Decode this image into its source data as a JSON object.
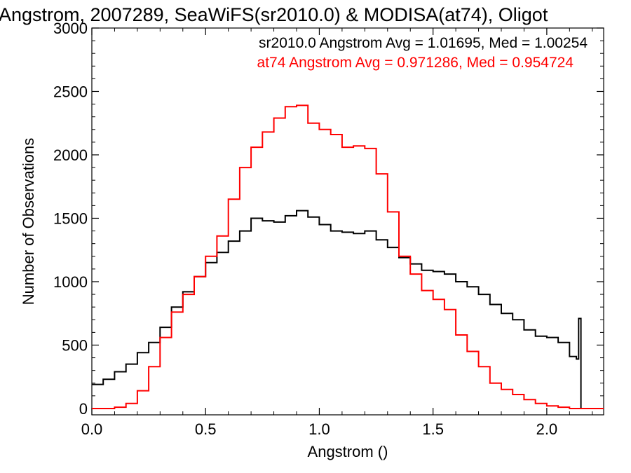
{
  "chart_data": {
    "type": "line",
    "step": true,
    "title": "Angstrom, 2007289, SeaWiFS(sr2010.0) & MODISA(at74), Oligot",
    "xlabel": "Angstrom ()",
    "ylabel": "Number of Observations",
    "xlim": [
      0.0,
      2.25
    ],
    "ylim": [
      -50,
      3000
    ],
    "x_ticks": [
      0.0,
      0.5,
      1.0,
      1.5,
      2.0
    ],
    "x_tick_labels": [
      "0.0",
      "0.5",
      "1.0",
      "1.5",
      "2.0"
    ],
    "y_ticks": [
      0,
      500,
      1000,
      1500,
      2000,
      2500,
      3000
    ],
    "y_tick_labels": [
      "0",
      "500",
      "1000",
      "1500",
      "2000",
      "2500",
      "3000"
    ],
    "grid": false,
    "annotations": [
      {
        "text": "sr2010.0 Angstrom Avg = 1.01695, Med = 1.00254",
        "color": "#000000"
      },
      {
        "text": "at74 Angstrom Avg = 0.971286, Med = 0.954724",
        "color": "#ff0000"
      }
    ],
    "series": [
      {
        "name": "sr2010.0",
        "color": "#000000",
        "x": [
          0.0,
          0.05,
          0.1,
          0.15,
          0.2,
          0.25,
          0.3,
          0.35,
          0.4,
          0.45,
          0.5,
          0.55,
          0.6,
          0.65,
          0.7,
          0.75,
          0.8,
          0.85,
          0.9,
          0.95,
          1.0,
          1.05,
          1.1,
          1.15,
          1.2,
          1.25,
          1.3,
          1.35,
          1.4,
          1.45,
          1.5,
          1.55,
          1.6,
          1.65,
          1.7,
          1.75,
          1.8,
          1.85,
          1.9,
          1.95,
          2.0,
          2.05,
          2.1,
          2.13,
          2.14,
          2.15,
          2.25
        ],
        "y": [
          190,
          230,
          290,
          350,
          440,
          520,
          640,
          800,
          920,
          1040,
          1150,
          1230,
          1320,
          1400,
          1500,
          1480,
          1470,
          1520,
          1560,
          1510,
          1450,
          1400,
          1390,
          1380,
          1400,
          1330,
          1270,
          1190,
          1140,
          1090,
          1080,
          1060,
          1000,
          960,
          900,
          820,
          750,
          700,
          620,
          570,
          560,
          520,
          410,
          390,
          710,
          0,
          0
        ]
      },
      {
        "name": "at74",
        "color": "#ff0000",
        "x": [
          0.0,
          0.05,
          0.1,
          0.15,
          0.2,
          0.25,
          0.3,
          0.35,
          0.4,
          0.45,
          0.5,
          0.55,
          0.6,
          0.65,
          0.7,
          0.75,
          0.8,
          0.85,
          0.9,
          0.95,
          1.0,
          1.05,
          1.1,
          1.15,
          1.2,
          1.25,
          1.3,
          1.35,
          1.4,
          1.45,
          1.5,
          1.55,
          1.6,
          1.65,
          1.7,
          1.75,
          1.8,
          1.85,
          1.9,
          1.95,
          2.0,
          2.05,
          2.1,
          2.15,
          2.25
        ],
        "y": [
          0,
          0,
          10,
          40,
          140,
          330,
          560,
          760,
          900,
          1040,
          1200,
          1360,
          1650,
          1900,
          2060,
          2180,
          2290,
          2380,
          2390,
          2250,
          2200,
          2160,
          2060,
          2070,
          2050,
          1850,
          1550,
          1200,
          1060,
          930,
          860,
          780,
          580,
          450,
          330,
          200,
          150,
          110,
          70,
          40,
          20,
          10,
          0,
          0,
          0
        ]
      }
    ]
  }
}
